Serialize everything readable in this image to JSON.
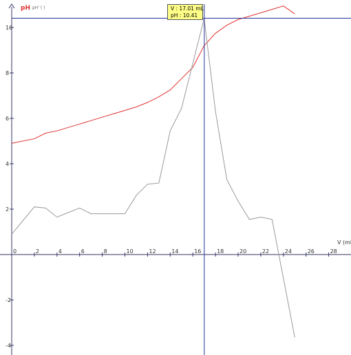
{
  "chart_data": {
    "type": "line",
    "title": "",
    "ylabel_main": "pH",
    "ylabel_secondary": "pH' ( )",
    "xlabel": "V (mL",
    "xlim": [
      0,
      30
    ],
    "ylim": [
      -4.3,
      11
    ],
    "x_ticks": [
      0,
      2,
      4,
      6,
      8,
      10,
      12,
      14,
      16,
      18,
      20,
      22,
      24,
      26,
      28
    ],
    "y_ticks": [
      -4,
      -2,
      0,
      2,
      4,
      6,
      8,
      10
    ],
    "crosshair": {
      "x": 17.01,
      "y": 10.41
    },
    "series": [
      {
        "color": "#e03030",
        "x": [
          0,
          2,
          3,
          4,
          5,
          6,
          7,
          8,
          9,
          10,
          11,
          12,
          13,
          14,
          15,
          16,
          17,
          18,
          19,
          20,
          21,
          22,
          23,
          24,
          25
        ],
        "y": [
          4.9,
          5.1,
          5.35,
          5.45,
          5.6,
          5.75,
          5.9,
          6.05,
          6.2,
          6.35,
          6.5,
          6.7,
          6.95,
          7.25,
          7.75,
          8.25,
          9.2,
          9.75,
          10.1,
          10.35,
          10.5,
          10.65,
          10.8,
          10.95,
          10.6
        ]
      },
      {
        "color": "#999999",
        "x": [
          0,
          2,
          3,
          4,
          5,
          6,
          7,
          8,
          9,
          10,
          11,
          12,
          13,
          14,
          15,
          17,
          18,
          19,
          20,
          21,
          22,
          23,
          25
        ],
        "y": [
          0.9,
          2.1,
          2.05,
          1.65,
          1.85,
          2.05,
          1.8,
          1.8,
          1.8,
          1.8,
          2.6,
          3.1,
          3.15,
          5.45,
          6.45,
          10.4,
          6.3,
          3.3,
          2.35,
          1.55,
          1.65,
          1.55,
          -3.65
        ]
      }
    ]
  },
  "readout": {
    "v_line": "V : 17.01 mL",
    "ph_line": "pH : 10.41"
  }
}
